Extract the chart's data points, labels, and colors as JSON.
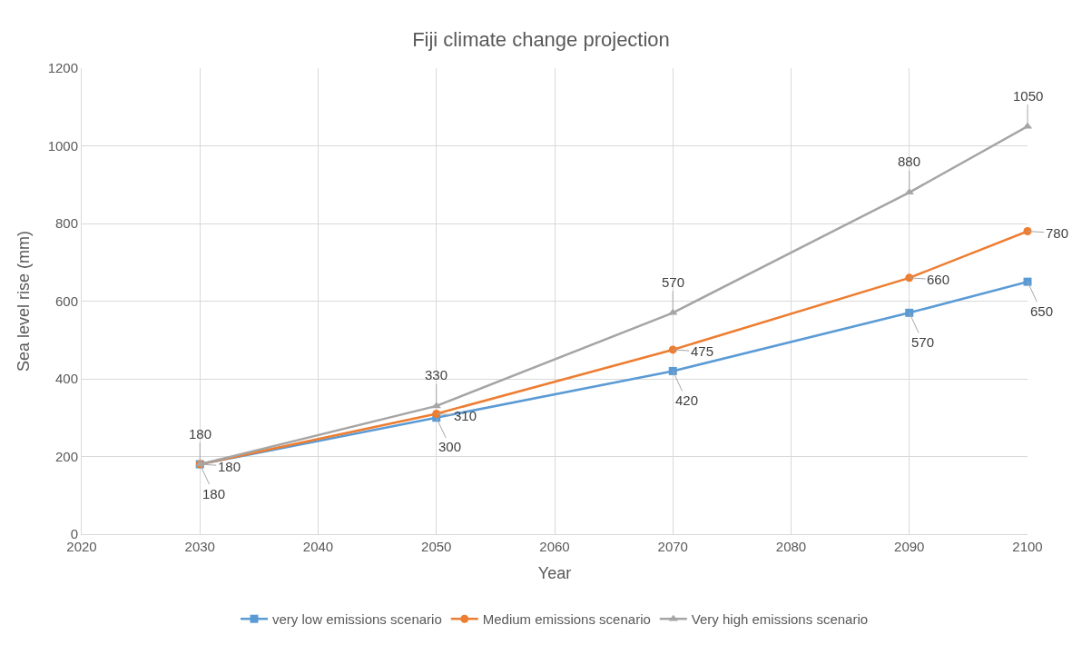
{
  "chart_data": {
    "type": "line",
    "title": "Fiji climate change projection",
    "xlabel": "Year",
    "ylabel": "Sea level rise (mm)",
    "x": [
      2030,
      2050,
      2070,
      2090,
      2100
    ],
    "series": [
      {
        "name": "very low emissions scenario",
        "color": "#5b9bd5",
        "marker": "square",
        "values": [
          180,
          300,
          420,
          570,
          650
        ]
      },
      {
        "name": "Medium emissions scenario",
        "color": "#ed7d31",
        "marker": "circle",
        "values": [
          180,
          310,
          475,
          660,
          780
        ]
      },
      {
        "name": "Very high emissions scenario",
        "color": "#a5a5a5",
        "marker": "triangle",
        "values": [
          180,
          330,
          570,
          880,
          1050
        ]
      }
    ],
    "xlim": [
      2020,
      2100
    ],
    "xticks": [
      2020,
      2030,
      2040,
      2050,
      2060,
      2070,
      2080,
      2090,
      2100
    ],
    "ylim": [
      0,
      1200
    ],
    "yticks": [
      0,
      200,
      400,
      600,
      800,
      1000,
      1200
    ],
    "grid": true,
    "legend": "bottom",
    "data_labels": true,
    "line_style": "solid"
  }
}
